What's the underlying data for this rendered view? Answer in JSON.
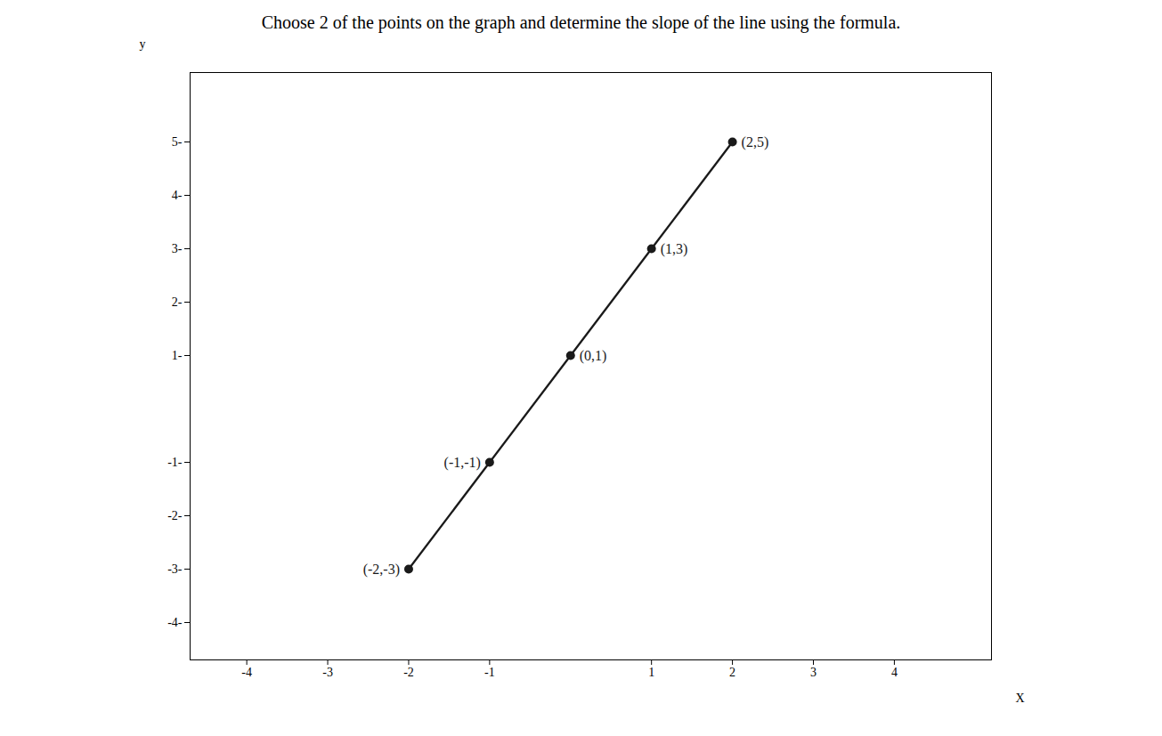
{
  "chart_data": {
    "type": "line",
    "title": "Choose 2 of the points on the graph and determine the slope of the line using the formula.",
    "x": [
      -2,
      -1,
      0,
      1,
      2
    ],
    "values": [
      -3,
      -1,
      1,
      3,
      5
    ],
    "color": "#1a1a1a",
    "marker": "circle",
    "annotations": [
      {
        "x": -2,
        "y": -3,
        "text": "(-2,-3)"
      },
      {
        "x": -1,
        "y": -1,
        "text": "(-1,-1)"
      },
      {
        "x": 0,
        "y": 1,
        "text": "(0,1)"
      },
      {
        "x": 1,
        "y": 3,
        "text": "(1,3)"
      },
      {
        "x": 2,
        "y": 5,
        "text": "(2,5)"
      }
    ],
    "xlabel": "X",
    "ylabel": "y",
    "xlim": [
      -4.7,
      5.2
    ],
    "ylim": [
      -4.7,
      6.3
    ],
    "xticks": [
      -4,
      -3,
      -2,
      -1,
      1,
      2,
      3,
      4
    ],
    "yticks": [
      {
        "value": -4,
        "label": "-4-"
      },
      {
        "value": -3,
        "label": "-3-"
      },
      {
        "value": -2,
        "label": "-2-"
      },
      {
        "value": -1,
        "label": "-1-"
      },
      {
        "value": 1,
        "label": "1-"
      },
      {
        "value": 2,
        "label": "2-"
      },
      {
        "value": 3,
        "label": "3-"
      },
      {
        "value": 4,
        "label": "4-"
      },
      {
        "value": 5,
        "label": "5-"
      }
    ],
    "grid": false
  }
}
